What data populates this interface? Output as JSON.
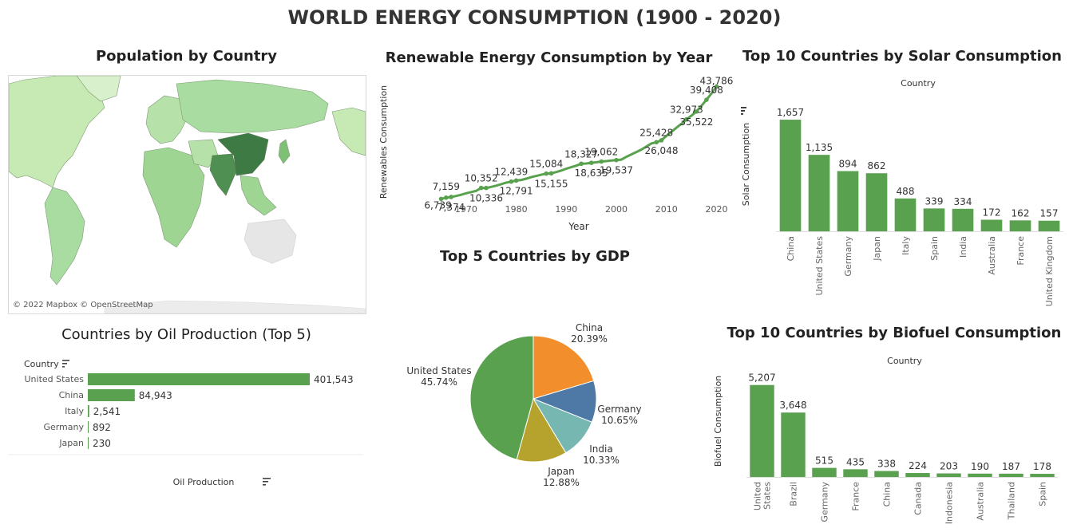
{
  "dashboard": {
    "title": "WORLD ENERGY CONSUMPTION (1900 - 2020)"
  },
  "map": {
    "title": "Population by Country",
    "credit": "© 2022 Mapbox © OpenStreetMap"
  },
  "colors": {
    "bar": "#59a14f",
    "line": "#59a14f",
    "pie": [
      "#59a14f",
      "#f28e2b",
      "#4e79a7",
      "#76b7b2",
      "#b5a32e"
    ],
    "map_land": "#c7e9b4",
    "map_dark": "#3d7a44"
  },
  "chart_data": [
    {
      "id": "renewables",
      "type": "line",
      "title": "Renewable Energy Consumption by Year",
      "xlabel": "Year",
      "ylabel": "Renewables Consumption",
      "xticks": [
        "1970",
        "1980",
        "1990",
        "2000",
        "2010",
        "2020"
      ],
      "xlim": [
        1963,
        2022
      ],
      "ylim": [
        5000,
        46000
      ],
      "points": [
        {
          "x": 1965,
          "y": 6739,
          "label": "6,739"
        },
        {
          "x": 1966,
          "y": 7159,
          "label": "7,159"
        },
        {
          "x": 1967,
          "y": 7374,
          "label": "7,374"
        },
        {
          "x": 1968,
          "y": 7700
        },
        {
          "x": 1969,
          "y": 8100
        },
        {
          "x": 1970,
          "y": 8600
        },
        {
          "x": 1971,
          "y": 9000
        },
        {
          "x": 1972,
          "y": 9400
        },
        {
          "x": 1973,
          "y": 10352,
          "label": "10,352"
        },
        {
          "x": 1974,
          "y": 10336,
          "label": "10,336"
        },
        {
          "x": 1975,
          "y": 10700
        },
        {
          "x": 1976,
          "y": 11100
        },
        {
          "x": 1977,
          "y": 11600
        },
        {
          "x": 1978,
          "y": 12100
        },
        {
          "x": 1979,
          "y": 12439,
          "label": "12,439"
        },
        {
          "x": 1980,
          "y": 12791,
          "label": "12,791"
        },
        {
          "x": 1981,
          "y": 13000
        },
        {
          "x": 1982,
          "y": 13400
        },
        {
          "x": 1983,
          "y": 13900
        },
        {
          "x": 1984,
          "y": 14300
        },
        {
          "x": 1985,
          "y": 14700
        },
        {
          "x": 1986,
          "y": 15084,
          "label": "15,084"
        },
        {
          "x": 1987,
          "y": 15155,
          "label": "15,155"
        },
        {
          "x": 1988,
          "y": 15600
        },
        {
          "x": 1989,
          "y": 16100
        },
        {
          "x": 1990,
          "y": 16700
        },
        {
          "x": 1991,
          "y": 17200
        },
        {
          "x": 1992,
          "y": 17700
        },
        {
          "x": 1993,
          "y": 18327,
          "label": "18,327"
        },
        {
          "x": 1994,
          "y": 18400
        },
        {
          "x": 1995,
          "y": 18635,
          "label": "18,635"
        },
        {
          "x": 1996,
          "y": 18800
        },
        {
          "x": 1997,
          "y": 19062,
          "label": "19,062"
        },
        {
          "x": 1998,
          "y": 19200
        },
        {
          "x": 1999,
          "y": 19400
        },
        {
          "x": 2000,
          "y": 19537,
          "label": "19,537"
        },
        {
          "x": 2001,
          "y": 19700
        },
        {
          "x": 2002,
          "y": 20600
        },
        {
          "x": 2003,
          "y": 21400
        },
        {
          "x": 2004,
          "y": 22200
        },
        {
          "x": 2005,
          "y": 23000
        },
        {
          "x": 2006,
          "y": 24000
        },
        {
          "x": 2007,
          "y": 25000
        },
        {
          "x": 2008,
          "y": 25428,
          "label": "25,428"
        },
        {
          "x": 2009,
          "y": 26048,
          "label": "26,048"
        },
        {
          "x": 2010,
          "y": 27500
        },
        {
          "x": 2011,
          "y": 28800
        },
        {
          "x": 2012,
          "y": 30200
        },
        {
          "x": 2013,
          "y": 31500
        },
        {
          "x": 2014,
          "y": 32973,
          "label": "32,973"
        },
        {
          "x": 2015,
          "y": 34200
        },
        {
          "x": 2016,
          "y": 35522,
          "label": "35,522"
        },
        {
          "x": 2017,
          "y": 37400
        },
        {
          "x": 2018,
          "y": 39408,
          "label": "39,408"
        },
        {
          "x": 2019,
          "y": 41500
        },
        {
          "x": 2020,
          "y": 43786,
          "label": "43,786"
        }
      ]
    },
    {
      "id": "solar",
      "type": "bar",
      "title": "Top 10 Countries by Solar Consumption",
      "header": "Country",
      "ylabel": "Solar Consumption",
      "categories": [
        "China",
        "United States",
        "Germany",
        "Japan",
        "Italy",
        "Spain",
        "India",
        "Australia",
        "France",
        "United Kingdom"
      ],
      "values": [
        1657,
        1135,
        894,
        862,
        488,
        339,
        334,
        172,
        162,
        157
      ],
      "value_labels": [
        "1,657",
        "1,135",
        "894",
        "862",
        "488",
        "339",
        "334",
        "172",
        "162",
        "157"
      ],
      "ylim": [
        0,
        1800
      ]
    },
    {
      "id": "oil",
      "type": "bar",
      "orientation": "horizontal",
      "title": "Countries by Oil Production (Top 5)",
      "header": "Country",
      "xlabel": "Oil Production",
      "categories": [
        "United States",
        "China",
        "Italy",
        "Germany",
        "Japan"
      ],
      "values": [
        401543,
        84943,
        2541,
        892,
        230
      ],
      "value_labels": [
        "401,543",
        "84,943",
        "2,541",
        "892",
        "230"
      ],
      "xlim": [
        0,
        401543
      ]
    },
    {
      "id": "gdp",
      "type": "pie",
      "title": "Top 5 Countries by GDP",
      "slices": [
        {
          "name": "China",
          "value": 20.39,
          "label": "20.39%"
        },
        {
          "name": "Germany",
          "value": 10.65,
          "label": "10.65%"
        },
        {
          "name": "India",
          "value": 10.33,
          "label": "10.33%"
        },
        {
          "name": "Japan",
          "value": 12.88,
          "label": "12.88%"
        },
        {
          "name": "United States",
          "value": 45.74,
          "label": "45.74%"
        }
      ]
    },
    {
      "id": "biofuel",
      "type": "bar",
      "title": "Top 10 Countries by Biofuel Consumption",
      "header": "Country",
      "ylabel": "Biofuel Consumption",
      "categories": [
        "United States",
        "Brazil",
        "Germany",
        "France",
        "China",
        "Canada",
        "Indonesia",
        "Australia",
        "Thailand",
        "Spain"
      ],
      "category_lines": [
        [
          "United",
          "States"
        ],
        [
          "Brazil"
        ],
        [
          "Germany"
        ],
        [
          "France"
        ],
        [
          "China"
        ],
        [
          "Canada"
        ],
        [
          "Indonesia"
        ],
        [
          "Australia"
        ],
        [
          "Thailand"
        ],
        [
          "Spain"
        ]
      ],
      "values": [
        5207,
        3648,
        515,
        435,
        338,
        224,
        203,
        190,
        187,
        178
      ],
      "value_labels": [
        "5,207",
        "3,648",
        "515",
        "435",
        "338",
        "224",
        "203",
        "190",
        "187",
        "178"
      ],
      "ylim": [
        0,
        5600
      ]
    }
  ]
}
